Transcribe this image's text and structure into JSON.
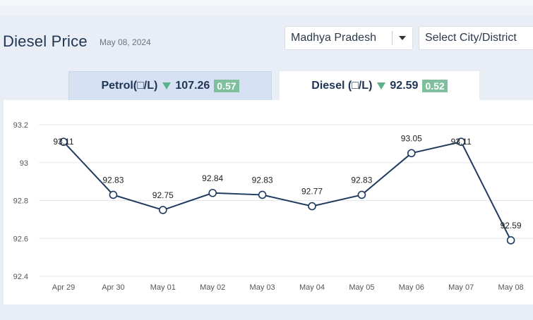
{
  "header": {
    "title": "Diesel Price",
    "date": "May 08, 2024"
  },
  "filters": {
    "state": "Madhya Pradesh",
    "city_placeholder": "Select City/District"
  },
  "tabs": [
    {
      "label": "Petrol(□/L)",
      "price": "107.26",
      "change": "0.57",
      "active": false
    },
    {
      "label": "Diesel (□/L)",
      "price": "92.59",
      "change": "0.52",
      "active": true
    }
  ],
  "colors": {
    "line": "#1f3a5f",
    "trend_down": "#5cb08a",
    "badge": "#7fbf9e"
  },
  "chart_data": {
    "type": "line",
    "categories": [
      "Apr 29",
      "Apr 30",
      "May 01",
      "May 02",
      "May 03",
      "May 04",
      "May 05",
      "May 06",
      "May 07",
      "May 08"
    ],
    "values": [
      93.11,
      92.83,
      92.75,
      92.84,
      92.83,
      92.77,
      92.83,
      93.05,
      93.11,
      92.59
    ],
    "data_labels": [
      "93.11",
      "92.83",
      "92.75",
      "92.84",
      "92.83",
      "92.77",
      "92.83",
      "93.05",
      "93.11",
      "92.59"
    ],
    "yticks": [
      "93.2",
      "93",
      "92.8",
      "92.6",
      "92.4"
    ],
    "ylim": [
      92.4,
      93.2
    ],
    "grid": true,
    "title": "",
    "xlabel": "",
    "ylabel": ""
  }
}
